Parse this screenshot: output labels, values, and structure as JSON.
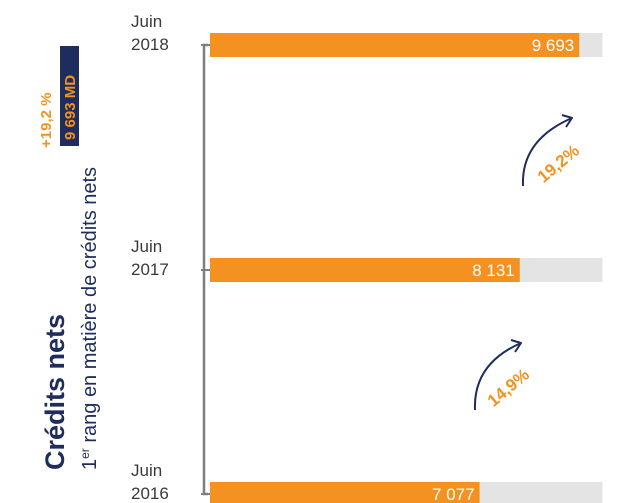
{
  "colors": {
    "navy": "#1f2d5c",
    "orange": "#f39220",
    "bar_track": "#e4e4e4",
    "axis": "#7f7f7f",
    "label_text": "#3a3a3a"
  },
  "side_panel": {
    "title": "Crédits nets",
    "subtitle_prefix": "1",
    "subtitle_sup": "er",
    "subtitle_rest": " rang en matière de crédits nets",
    "badge_value": "9 693 MD",
    "badge_growth": "+19,2 %"
  },
  "chart_data": {
    "type": "bar",
    "orientation": "horizontal",
    "categories": [
      {
        "month": "Juin",
        "year": "2018"
      },
      {
        "month": "Juin",
        "year": "2017"
      },
      {
        "month": "Juin",
        "year": "2016"
      }
    ],
    "values": [
      9693,
      8131,
      7077
    ],
    "value_labels": [
      "9 693",
      "8 131",
      "7 077"
    ],
    "xlim": [
      0,
      10500
    ],
    "growth_annotations": [
      {
        "from": "2017",
        "to": "2018",
        "label": "19,2%"
      },
      {
        "from": "2016",
        "to": "2017",
        "label": "14,9%"
      }
    ]
  }
}
